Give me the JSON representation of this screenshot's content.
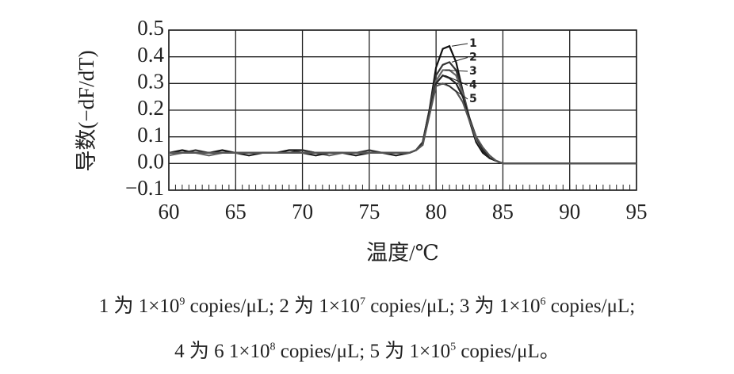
{
  "chart_data": {
    "type": "line",
    "ylabel": "导数(−dF/dT)",
    "xlabel": "温度/℃",
    "x": [
      60,
      61,
      62,
      63,
      64,
      65,
      66,
      67,
      68,
      69,
      70,
      71,
      72,
      73,
      74,
      75,
      76,
      77,
      78,
      78.5,
      79,
      79.5,
      80,
      80.5,
      81,
      81.5,
      82,
      82.5,
      83,
      83.5,
      84,
      84.5,
      85,
      86,
      87,
      88,
      89,
      90,
      91,
      92,
      93,
      94,
      95
    ],
    "series": [
      {
        "name": "1",
        "color": "#111",
        "values": [
          0.04,
          0.05,
          0.04,
          0.04,
          0.05,
          0.04,
          0.04,
          0.04,
          0.04,
          0.05,
          0.05,
          0.04,
          0.04,
          0.04,
          0.04,
          0.04,
          0.04,
          0.04,
          0.04,
          0.05,
          0.08,
          0.2,
          0.36,
          0.43,
          0.44,
          0.38,
          0.27,
          0.16,
          0.08,
          0.04,
          0.02,
          0.01,
          0,
          0,
          0,
          0,
          0,
          0,
          0,
          0,
          0,
          0,
          0
        ]
      },
      {
        "name": "2",
        "color": "#333",
        "values": [
          0.04,
          0.04,
          0.05,
          0.04,
          0.04,
          0.04,
          0.04,
          0.04,
          0.04,
          0.04,
          0.05,
          0.04,
          0.04,
          0.04,
          0.04,
          0.05,
          0.04,
          0.04,
          0.04,
          0.05,
          0.08,
          0.2,
          0.33,
          0.37,
          0.38,
          0.35,
          0.27,
          0.17,
          0.09,
          0.05,
          0.02,
          0.01,
          0,
          0,
          0,
          0,
          0,
          0,
          0,
          0,
          0,
          0,
          0
        ]
      },
      {
        "name": "3",
        "color": "#666",
        "values": [
          0.03,
          0.04,
          0.04,
          0.03,
          0.04,
          0.04,
          0.04,
          0.04,
          0.04,
          0.04,
          0.04,
          0.04,
          0.03,
          0.04,
          0.04,
          0.04,
          0.04,
          0.04,
          0.04,
          0.05,
          0.07,
          0.19,
          0.31,
          0.35,
          0.35,
          0.33,
          0.26,
          0.17,
          0.09,
          0.05,
          0.02,
          0.01,
          0,
          0,
          0,
          0,
          0,
          0,
          0,
          0,
          0,
          0,
          0
        ]
      },
      {
        "name": "4",
        "color": "#222",
        "values": [
          0.04,
          0.04,
          0.04,
          0.04,
          0.04,
          0.04,
          0.03,
          0.04,
          0.04,
          0.04,
          0.04,
          0.03,
          0.04,
          0.04,
          0.03,
          0.04,
          0.04,
          0.03,
          0.04,
          0.05,
          0.07,
          0.19,
          0.3,
          0.33,
          0.32,
          0.3,
          0.25,
          0.17,
          0.1,
          0.05,
          0.02,
          0.01,
          0,
          0,
          0,
          0,
          0,
          0,
          0,
          0,
          0,
          0,
          0
        ]
      },
      {
        "name": "5",
        "color": "#555",
        "values": [
          0.04,
          0.04,
          0.04,
          0.04,
          0.04,
          0.04,
          0.04,
          0.04,
          0.04,
          0.04,
          0.04,
          0.04,
          0.04,
          0.04,
          0.04,
          0.04,
          0.04,
          0.04,
          0.04,
          0.05,
          0.07,
          0.18,
          0.29,
          0.3,
          0.29,
          0.27,
          0.23,
          0.16,
          0.1,
          0.06,
          0.03,
          0.01,
          0,
          0,
          0,
          0,
          0,
          0,
          0,
          0,
          0,
          0,
          0
        ]
      }
    ],
    "xlim": [
      60,
      95
    ],
    "xticks": [
      60,
      65,
      70,
      75,
      80,
      85,
      90,
      95
    ],
    "ylim": [
      -0.1,
      0.5
    ],
    "yticks": [
      {
        "value": -0.1,
        "label": "−0.1"
      },
      {
        "value": 0,
        "label": "0.0"
      },
      0.1,
      0.2,
      0.3,
      0.4,
      0.5
    ],
    "grid": true,
    "caption": [
      [
        {
          "text": "1 为 1×10"
        },
        {
          "sup": "9"
        },
        {
          "text": " copies/μL; 2 为 1×10"
        },
        {
          "sup": "7"
        },
        {
          "text": " copies/μL; 3 为 1×10"
        },
        {
          "sup": "6"
        },
        {
          "text": " copies/μL;"
        }
      ],
      [
        {
          "text": "4 为 6 1×10"
        },
        {
          "sup": "8"
        },
        {
          "text": " copies/μL; 5 为 1×10"
        },
        {
          "sup": "5"
        },
        {
          "text": " copies/μL。"
        }
      ]
    ]
  }
}
